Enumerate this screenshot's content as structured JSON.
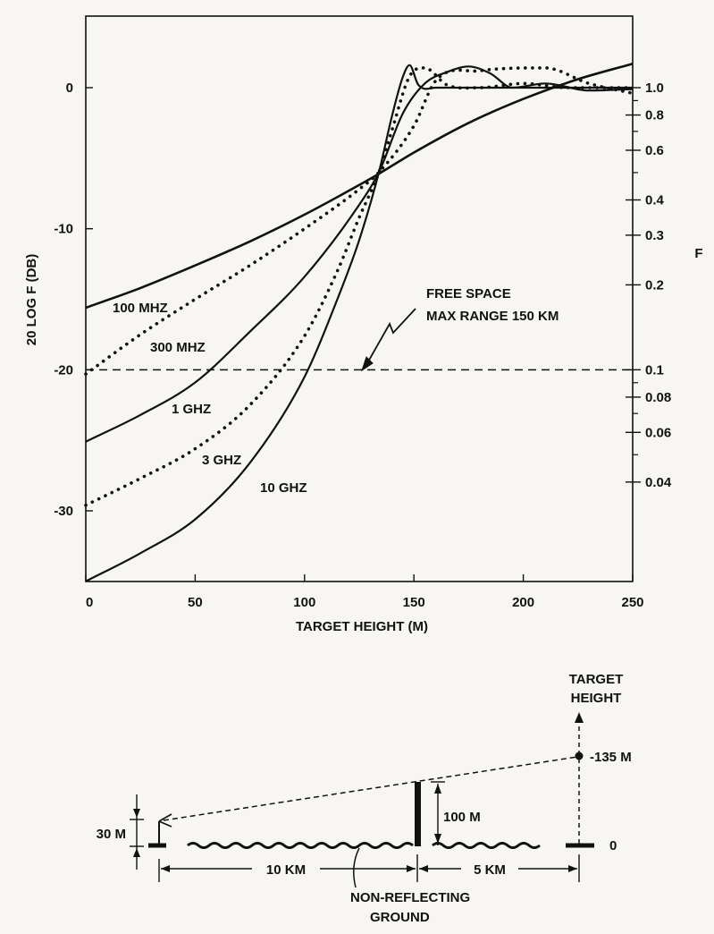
{
  "chart_data": {
    "type": "line",
    "xlabel": "TARGET HEIGHT (M)",
    "ylabel": "20 LOG F (DB)",
    "ylabel_right": "F",
    "xlim": [
      0,
      250
    ],
    "ylim": [
      -35,
      5
    ],
    "x_ticks": [
      0,
      50,
      100,
      150,
      200,
      250
    ],
    "y_ticks": [
      0,
      -10,
      -20,
      -30
    ],
    "right_ticks": [
      {
        "label": "1.0",
        "F": 1.0
      },
      {
        "label": "0.8",
        "F": 0.8
      },
      {
        "label": "0.6",
        "F": 0.6
      },
      {
        "label": "0.4",
        "F": 0.4
      },
      {
        "label": "0.3",
        "F": 0.3
      },
      {
        "label": "0.2",
        "F": 0.2
      },
      {
        "label": "0.1",
        "F": 0.1
      },
      {
        "label": "0.08",
        "F": 0.08
      },
      {
        "label": "0.06",
        "F": 0.06
      },
      {
        "label": "0.04",
        "F": 0.04
      }
    ],
    "right_minor_ticks": [
      0.9,
      0.7,
      0.5,
      0.09,
      0.07,
      0.05
    ],
    "reference_line": {
      "y": -20,
      "style": "dashed"
    },
    "series": [
      {
        "name": "100 MHZ",
        "style": "solid",
        "x": [
          0,
          25,
          50,
          75,
          100,
          125,
          134,
          150,
          175,
          200,
          225,
          250
        ],
        "y": [
          -15.6,
          -14.2,
          -12.6,
          -10.9,
          -9.0,
          -6.9,
          -6.1,
          -4.6,
          -2.5,
          -0.8,
          0.6,
          1.7
        ]
      },
      {
        "name": "300 MHZ",
        "style": "dotted",
        "x": [
          0,
          25,
          50,
          75,
          100,
          125,
          134,
          150,
          160,
          180,
          210,
          230,
          250
        ],
        "y": [
          -20.3,
          -17.5,
          -15.0,
          -12.6,
          -10.0,
          -7.2,
          -6.0,
          -2.7,
          0.5,
          1.2,
          1.4,
          0.3,
          -0.4
        ]
      },
      {
        "name": "1 GHZ",
        "style": "solid",
        "x": [
          0,
          25,
          50,
          75,
          100,
          125,
          134,
          145,
          155,
          165,
          175,
          185,
          195,
          210,
          230,
          250
        ],
        "y": [
          -25.1,
          -23.2,
          -20.9,
          -17.3,
          -13.4,
          -8.3,
          -6.0,
          -1.8,
          0.3,
          1.1,
          1.5,
          1.0,
          0.0,
          0.3,
          -0.2,
          -0.1
        ]
      },
      {
        "name": "3 GHZ",
        "style": "dotted",
        "x": [
          0,
          25,
          50,
          75,
          100,
          115,
          125,
          134,
          140,
          148,
          155,
          165,
          180,
          200,
          220,
          250
        ],
        "y": [
          -29.6,
          -27.7,
          -25.6,
          -22.5,
          -17.6,
          -13.0,
          -9.2,
          -6.0,
          -3.0,
          0.8,
          1.4,
          0.2,
          0.0,
          0.3,
          0.0,
          0.0
        ]
      },
      {
        "name": "10 GHZ",
        "style": "solid",
        "x": [
          0,
          25,
          50,
          75,
          100,
          115,
          125,
          134,
          140,
          145,
          148,
          152,
          160,
          180,
          200,
          250
        ],
        "y": [
          -35.0,
          -33.0,
          -30.6,
          -26.6,
          -20.5,
          -15.0,
          -10.8,
          -6.0,
          -2.0,
          0.8,
          1.6,
          0.2,
          0.0,
          0.0,
          0.0,
          0.0
        ]
      }
    ],
    "annotations": [
      "FREE SPACE",
      "MAX RANGE 150 KM"
    ]
  },
  "geometry_diagram": {
    "target_height_label_1": "TARGET",
    "target_height_label_2": "HEIGHT",
    "target_value": "135 M",
    "obstacle_height": "100 M",
    "antenna_height": "30 M",
    "zero_label": "0",
    "distance_1": "10 KM",
    "distance_2": "5 KM",
    "ground_label_1": "NON-REFLECTING",
    "ground_label_2": "GROUND"
  }
}
